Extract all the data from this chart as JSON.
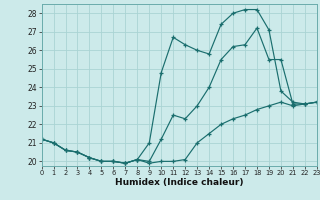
{
  "xlabel": "Humidex (Indice chaleur)",
  "background_color": "#cceaea",
  "grid_color": "#aad4d4",
  "line_color": "#1a6e6e",
  "xlim": [
    0,
    23
  ],
  "ylim": [
    19.75,
    28.5
  ],
  "yticks": [
    20,
    21,
    22,
    23,
    24,
    25,
    26,
    27,
    28
  ],
  "xticks": [
    0,
    1,
    2,
    3,
    4,
    5,
    6,
    7,
    8,
    9,
    10,
    11,
    12,
    13,
    14,
    15,
    16,
    17,
    18,
    19,
    20,
    21,
    22,
    23
  ],
  "series": [
    {
      "x": [
        0,
        1,
        2,
        3,
        4,
        5,
        6,
        7,
        8,
        9,
        10,
        11,
        12,
        13,
        14,
        15,
        16,
        17,
        18,
        19,
        20,
        21,
        22,
        23
      ],
      "y": [
        21.2,
        21.0,
        20.6,
        20.5,
        20.2,
        20.0,
        20.0,
        19.9,
        20.1,
        19.9,
        20.0,
        20.0,
        20.1,
        21.0,
        21.5,
        22.0,
        22.3,
        22.5,
        22.8,
        23.0,
        23.2,
        23.0,
        23.1,
        23.2
      ]
    },
    {
      "x": [
        0,
        1,
        2,
        3,
        4,
        5,
        6,
        7,
        8,
        9,
        10,
        11,
        12,
        13,
        14,
        15,
        16,
        17,
        18,
        19,
        20,
        21,
        22,
        23
      ],
      "y": [
        21.2,
        21.0,
        20.6,
        20.5,
        20.2,
        20.0,
        20.0,
        19.9,
        20.1,
        20.0,
        21.2,
        22.5,
        22.3,
        23.0,
        24.0,
        25.5,
        26.2,
        26.3,
        27.2,
        25.5,
        25.5,
        23.1,
        23.1,
        23.2
      ]
    },
    {
      "x": [
        0,
        1,
        2,
        3,
        4,
        5,
        6,
        7,
        8,
        9,
        10,
        11,
        12,
        13,
        14,
        15,
        16,
        17,
        18,
        19,
        20,
        21,
        22,
        23
      ],
      "y": [
        21.2,
        21.0,
        20.6,
        20.5,
        20.2,
        20.0,
        20.0,
        19.9,
        20.1,
        21.0,
        24.8,
        26.7,
        26.3,
        26.0,
        25.8,
        27.4,
        28.0,
        28.2,
        28.2,
        27.1,
        23.8,
        23.2,
        23.1,
        23.2
      ]
    }
  ]
}
